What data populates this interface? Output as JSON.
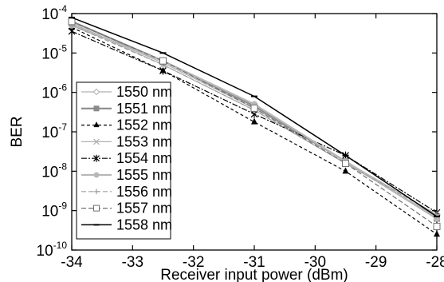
{
  "chart_data": {
    "type": "line",
    "xlabel": "Receiver input power (dBm)",
    "ylabel": "BER",
    "xlim": [
      -34,
      -28
    ],
    "ylim_exp": [
      -10,
      -4
    ],
    "y_scale": "log",
    "grid": false,
    "legend_placement": "bottom-left",
    "x_ticks": [
      {
        "value": -34,
        "label": "-34"
      },
      {
        "value": -33,
        "label": "-33"
      },
      {
        "value": -32,
        "label": "-32"
      },
      {
        "value": -31,
        "label": "-31"
      },
      {
        "value": -30,
        "label": "-30"
      },
      {
        "value": -29,
        "label": "-29"
      },
      {
        "value": -28,
        "label": "-28"
      }
    ],
    "y_ticks": [
      {
        "exp": -4,
        "base": "10",
        "power": "-4"
      },
      {
        "exp": -5,
        "base": "10",
        "power": "-5"
      },
      {
        "exp": -6,
        "base": "10",
        "power": "-6"
      },
      {
        "exp": -7,
        "base": "10",
        "power": "-7"
      },
      {
        "exp": -8,
        "base": "10",
        "power": "-8"
      },
      {
        "exp": -9,
        "base": "10",
        "power": "-9"
      },
      {
        "exp": -10,
        "base": "10",
        "power": "-10"
      }
    ],
    "x": [
      -34,
      -32.5,
      -31,
      -29.5,
      -28
    ],
    "series": [
      {
        "name": "1550 nm",
        "color": "#b0b0b0",
        "marker": "diamond-open",
        "dash": "",
        "width": 1.2,
        "y_exp": [
          -4.25,
          -5.25,
          -6.4,
          -7.75,
          -9.1
        ]
      },
      {
        "name": "1551 nm",
        "color": "#8a8a8a",
        "marker": "square-filled",
        "dash": "",
        "width": 2.2,
        "y_exp": [
          -4.2,
          -5.2,
          -6.35,
          -7.75,
          -9.2
        ]
      },
      {
        "name": "1552 nm",
        "color": "#000000",
        "marker": "triangle-filled",
        "dash": "4,3",
        "width": 1.2,
        "y_exp": [
          -4.35,
          -5.45,
          -6.75,
          -8.0,
          -9.6
        ]
      },
      {
        "name": "1553 nm",
        "color": "#b0b0b0",
        "marker": "x",
        "dash": "",
        "width": 1.2,
        "y_exp": [
          -4.25,
          -5.3,
          -6.45,
          -7.8,
          -9.15
        ]
      },
      {
        "name": "1554 nm",
        "color": "#000000",
        "marker": "asterisk",
        "dash": "7,2,2,2",
        "width": 1.2,
        "y_exp": [
          -4.45,
          -5.45,
          -6.55,
          -7.6,
          -9.05
        ]
      },
      {
        "name": "1555 nm",
        "color": "#b8b8b8",
        "marker": "circle-filled",
        "dash": "",
        "width": 2.2,
        "y_exp": [
          -4.3,
          -5.2,
          -6.3,
          -7.75,
          -9.2
        ]
      },
      {
        "name": "1556 nm",
        "color": "#a0a0a0",
        "marker": "plus",
        "dash": "6,3",
        "width": 1.2,
        "y_exp": [
          -4.3,
          -5.3,
          -6.45,
          -7.8,
          -9.1
        ]
      },
      {
        "name": "1557 nm",
        "color": "#707070",
        "marker": "square-open",
        "dash": "6,3",
        "width": 1.2,
        "y_exp": [
          -4.2,
          -5.2,
          -6.4,
          -7.8,
          -9.4
        ]
      },
      {
        "name": "1558 nm",
        "color": "#000000",
        "marker": "dash",
        "dash": "",
        "width": 1.5,
        "y_exp": [
          -4.1,
          -5.0,
          -6.1,
          -7.6,
          -9.15
        ]
      }
    ]
  }
}
